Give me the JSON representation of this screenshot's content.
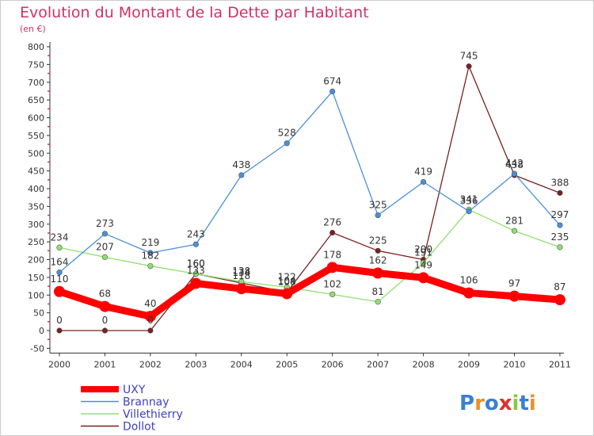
{
  "chart_data": {
    "type": "line",
    "title": "Evolution du Montant de la Dette par Habitant",
    "subtitle": "(en €)",
    "categories": [
      "2000",
      "2001",
      "2002",
      "2003",
      "2004",
      "2005",
      "2006",
      "2007",
      "2008",
      "2009",
      "2010",
      "2011"
    ],
    "y_ticks": [
      "-50",
      "0",
      "50",
      "100",
      "150",
      "200",
      "250",
      "300",
      "350",
      "400",
      "450",
      "500",
      "550",
      "600",
      "650",
      "700",
      "750",
      "800"
    ],
    "ylim": [
      -50,
      800
    ],
    "grid": false,
    "legend_position": "bottom-left",
    "series": [
      {
        "name": "UXY",
        "color": "#ff0000",
        "values": [
          110,
          68,
          40,
          133,
          118,
          104,
          178,
          162,
          149,
          106,
          97,
          87
        ],
        "labels": [
          "110",
          "68",
          "40",
          "133",
          "118",
          "104",
          "178",
          "162",
          "149",
          "106",
          "97",
          "87"
        ]
      },
      {
        "name": "Brannay",
        "color": "#4a90d9",
        "values": [
          164,
          273,
          219,
          243,
          438,
          528,
          674,
          325,
          419,
          336,
          442,
          297
        ],
        "labels": [
          "164",
          "273",
          "219",
          "243",
          "438",
          "528",
          "674",
          "325",
          "419",
          "336",
          "442",
          "297"
        ]
      },
      {
        "name": "Villethierry",
        "color": "#90e070",
        "values": [
          234,
          207,
          182,
          160,
          138,
          122,
          102,
          81,
          191,
          341,
          281,
          235
        ],
        "labels": [
          "234",
          "207",
          "182",
          "160",
          "138",
          "122",
          "102",
          "81",
          "191",
          "341",
          "281",
          "235"
        ]
      },
      {
        "name": "Dollot",
        "color": "#7a2020",
        "values": [
          0,
          0,
          0,
          160,
          134,
          108,
          276,
          225,
          200,
          745,
          438,
          388
        ],
        "labels": [
          "0",
          "0",
          "0",
          "160",
          "134",
          "108",
          "276",
          "225",
          "200",
          "745",
          "438",
          "388"
        ]
      }
    ]
  },
  "watermark": {
    "text": "Proxiti",
    "colors": [
      "#3a7fd5",
      "#e8902a",
      "#3a7fd5",
      "#e0302a",
      "#8cc63f",
      "#3a7fd5",
      "#e8902a"
    ]
  }
}
